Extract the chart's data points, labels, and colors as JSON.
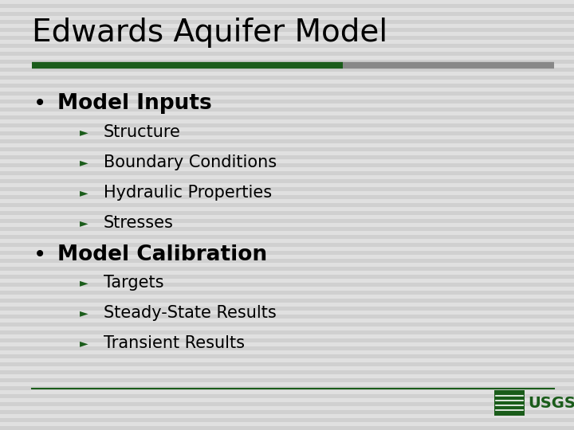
{
  "title": "Edwards Aquifer Model",
  "title_fontsize": 28,
  "title_color": "#000000",
  "bg_color": "#e0e0e0",
  "stripe_color": "#d0d0d0",
  "dark_green": "#1a5c1a",
  "title_bar_dark": "#1a5c1a",
  "title_bar_light": "#888888",
  "bullet_color": "#000000",
  "section_fontsize": 19,
  "sub_fontsize": 15,
  "sections": [
    {
      "label": "Model Inputs",
      "items": [
        "Structure",
        "Boundary Conditions",
        "Hydraulic Properties",
        "Stresses"
      ]
    },
    {
      "label": "Model Calibration",
      "items": [
        "Targets",
        "Steady-State Results",
        "Transient Results"
      ]
    }
  ],
  "footer_line_color": "#1a5c1a",
  "usgs_text": "USGS"
}
